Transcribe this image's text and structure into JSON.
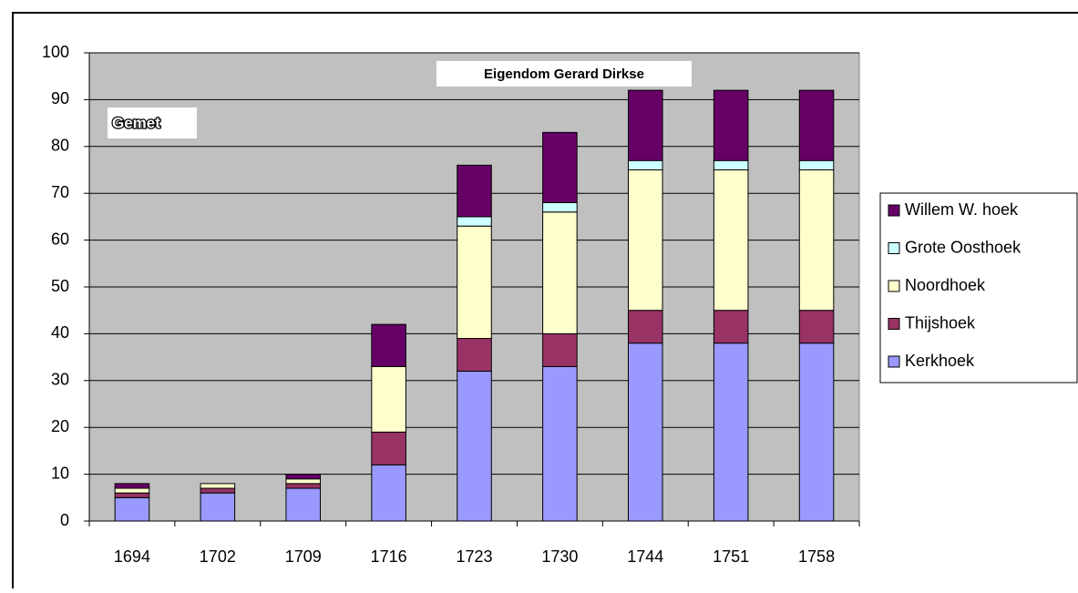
{
  "chart_data": {
    "type": "stacked_bar",
    "title": "Eigendom Gerard Dirkse",
    "y_label": "Gemet",
    "categories": [
      "1694",
      "1702",
      "1709",
      "1716",
      "1723",
      "1730",
      "1744",
      "1751",
      "1758"
    ],
    "series": [
      {
        "name": "Kerkhoek",
        "color": "#9999ff",
        "values": [
          5,
          6,
          7,
          12,
          32,
          33,
          38,
          38,
          38
        ]
      },
      {
        "name": "Thijshoek",
        "color": "#993366",
        "values": [
          1,
          1,
          1,
          7,
          7,
          7,
          7,
          7,
          7
        ]
      },
      {
        "name": "Noordhoek",
        "color": "#ffffcc",
        "values": [
          1,
          1,
          1,
          14,
          24,
          26,
          30,
          30,
          30
        ]
      },
      {
        "name": "Grote Oosthoek",
        "color": "#ccffff",
        "values": [
          0,
          0,
          0,
          0,
          2,
          2,
          2,
          2,
          2
        ]
      },
      {
        "name": "Willem W. hoek",
        "color": "#660066",
        "values": [
          1,
          0,
          1,
          9,
          11,
          15,
          15,
          15,
          15
        ]
      }
    ],
    "ylim": [
      0,
      100
    ],
    "yticks": [
      0,
      10,
      20,
      30,
      40,
      50,
      60,
      70,
      80,
      90,
      100
    ],
    "grid": true,
    "plot_background": "#c0c0c0",
    "legend": "right"
  }
}
